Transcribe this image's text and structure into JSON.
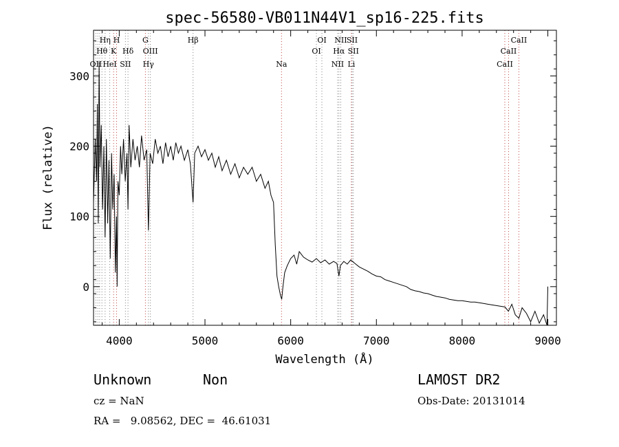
{
  "chart_data": {
    "type": "line",
    "title": "spec-56580-VB011N44V1_sp16-225.fits",
    "xlabel": "Wavelength (Å)",
    "ylabel": "Flux (relative)",
    "xlim": [
      3700,
      9100
    ],
    "ylim": [
      -55,
      365
    ],
    "xticks": [
      4000,
      5000,
      6000,
      7000,
      8000,
      9000
    ],
    "yticks": [
      0,
      100,
      200,
      300
    ],
    "grid": false,
    "series": [
      {
        "color": "#000000",
        "points": [
          [
            3700,
            120
          ],
          [
            3720,
            210
          ],
          [
            3735,
            150
          ],
          [
            3745,
            260
          ],
          [
            3755,
            90
          ],
          [
            3765,
            320
          ],
          [
            3775,
            170
          ],
          [
            3790,
            230
          ],
          [
            3805,
            110
          ],
          [
            3820,
            200
          ],
          [
            3835,
            70
          ],
          [
            3850,
            210
          ],
          [
            3865,
            90
          ],
          [
            3880,
            180
          ],
          [
            3895,
            40
          ],
          [
            3910,
            190
          ],
          [
            3925,
            110
          ],
          [
            3940,
            160
          ],
          [
            3955,
            20
          ],
          [
            3968,
            100
          ],
          [
            3975,
            0
          ],
          [
            3985,
            150
          ],
          [
            4000,
            130
          ],
          [
            4015,
            200
          ],
          [
            4030,
            160
          ],
          [
            4050,
            210
          ],
          [
            4070,
            150
          ],
          [
            4090,
            190
          ],
          [
            4102,
            110
          ],
          [
            4115,
            230
          ],
          [
            4135,
            170
          ],
          [
            4160,
            210
          ],
          [
            4185,
            180
          ],
          [
            4210,
            200
          ],
          [
            4235,
            170
          ],
          [
            4260,
            215
          ],
          [
            4290,
            180
          ],
          [
            4320,
            195
          ],
          [
            4340,
            80
          ],
          [
            4360,
            190
          ],
          [
            4390,
            175
          ],
          [
            4420,
            210
          ],
          [
            4450,
            190
          ],
          [
            4480,
            200
          ],
          [
            4510,
            175
          ],
          [
            4540,
            205
          ],
          [
            4570,
            185
          ],
          [
            4600,
            200
          ],
          [
            4630,
            180
          ],
          [
            4660,
            205
          ],
          [
            4690,
            190
          ],
          [
            4720,
            200
          ],
          [
            4760,
            180
          ],
          [
            4800,
            195
          ],
          [
            4830,
            175
          ],
          [
            4861,
            120
          ],
          [
            4880,
            190
          ],
          [
            4920,
            200
          ],
          [
            4960,
            185
          ],
          [
            5000,
            195
          ],
          [
            5040,
            180
          ],
          [
            5080,
            190
          ],
          [
            5120,
            170
          ],
          [
            5160,
            185
          ],
          [
            5200,
            165
          ],
          [
            5250,
            180
          ],
          [
            5300,
            160
          ],
          [
            5350,
            175
          ],
          [
            5400,
            155
          ],
          [
            5450,
            170
          ],
          [
            5500,
            160
          ],
          [
            5550,
            170
          ],
          [
            5600,
            150
          ],
          [
            5650,
            160
          ],
          [
            5700,
            140
          ],
          [
            5740,
            150
          ],
          [
            5770,
            130
          ],
          [
            5800,
            120
          ],
          [
            5820,
            60
          ],
          [
            5840,
            15
          ],
          [
            5860,
            0
          ],
          [
            5880,
            -12
          ],
          [
            5895,
            -18
          ],
          [
            5910,
            0
          ],
          [
            5930,
            20
          ],
          [
            5960,
            30
          ],
          [
            6000,
            40
          ],
          [
            6040,
            45
          ],
          [
            6070,
            32
          ],
          [
            6100,
            50
          ],
          [
            6150,
            42
          ],
          [
            6200,
            38
          ],
          [
            6250,
            35
          ],
          [
            6300,
            40
          ],
          [
            6350,
            34
          ],
          [
            6400,
            38
          ],
          [
            6450,
            32
          ],
          [
            6500,
            36
          ],
          [
            6540,
            33
          ],
          [
            6563,
            15
          ],
          [
            6580,
            30
          ],
          [
            6620,
            36
          ],
          [
            6660,
            32
          ],
          [
            6700,
            38
          ],
          [
            6750,
            33
          ],
          [
            6800,
            28
          ],
          [
            6850,
            25
          ],
          [
            6900,
            22
          ],
          [
            6950,
            18
          ],
          [
            7000,
            15
          ],
          [
            7050,
            14
          ],
          [
            7100,
            10
          ],
          [
            7150,
            8
          ],
          [
            7200,
            6
          ],
          [
            7250,
            4
          ],
          [
            7300,
            2
          ],
          [
            7350,
            0
          ],
          [
            7400,
            -4
          ],
          [
            7450,
            -6
          ],
          [
            7500,
            -7
          ],
          [
            7550,
            -9
          ],
          [
            7600,
            -10
          ],
          [
            7650,
            -12
          ],
          [
            7700,
            -14
          ],
          [
            7750,
            -15
          ],
          [
            7800,
            -16
          ],
          [
            7850,
            -18
          ],
          [
            7900,
            -19
          ],
          [
            7950,
            -20
          ],
          [
            8000,
            -20
          ],
          [
            8050,
            -21
          ],
          [
            8100,
            -22
          ],
          [
            8150,
            -22
          ],
          [
            8200,
            -23
          ],
          [
            8250,
            -24
          ],
          [
            8300,
            -25
          ],
          [
            8350,
            -26
          ],
          [
            8400,
            -27
          ],
          [
            8450,
            -28
          ],
          [
            8500,
            -29
          ],
          [
            8540,
            -35
          ],
          [
            8580,
            -25
          ],
          [
            8620,
            -40
          ],
          [
            8662,
            -45
          ],
          [
            8700,
            -30
          ],
          [
            8750,
            -38
          ],
          [
            8800,
            -50
          ],
          [
            8850,
            -35
          ],
          [
            8900,
            -52
          ],
          [
            8950,
            -40
          ],
          [
            8990,
            -55
          ],
          [
            9000,
            0
          ]
        ]
      }
    ],
    "line_markers": [
      {
        "x": 3727,
        "color": "#808080",
        "row": 3,
        "label": "OII"
      },
      {
        "x": 3750,
        "color": "#808080",
        "row": 1,
        "label": ""
      },
      {
        "x": 3771,
        "color": "#808080",
        "row": 2,
        "label": ""
      },
      {
        "x": 3798,
        "color": "#808080",
        "row": 2,
        "label": "Hθ"
      },
      {
        "x": 3835,
        "color": "#808080",
        "row": 1,
        "label": "Hη"
      },
      {
        "x": 3889,
        "color": "#808080",
        "row": 3,
        "label": "HeI"
      },
      {
        "x": 3934,
        "color": "#c04040",
        "row": 2,
        "label": "K"
      },
      {
        "x": 3969,
        "color": "#c04040",
        "row": 1,
        "label": "H"
      },
      {
        "x": 4072,
        "color": "#808080",
        "row": 3,
        "label": "SII"
      },
      {
        "x": 4102,
        "color": "#808080",
        "row": 2,
        "label": "Hδ"
      },
      {
        "x": 4305,
        "color": "#c04040",
        "row": 1,
        "label": "G"
      },
      {
        "x": 4340,
        "color": "#808080",
        "row": 3,
        "label": "Hγ"
      },
      {
        "x": 4363,
        "color": "#808080",
        "row": 2,
        "label": "OIII"
      },
      {
        "x": 4861,
        "color": "#808080",
        "row": 1,
        "label": "Hβ"
      },
      {
        "x": 5893,
        "color": "#c04040",
        "row": 3,
        "label": "Na"
      },
      {
        "x": 6300,
        "color": "#808080",
        "row": 2,
        "label": "OI"
      },
      {
        "x": 6364,
        "color": "#808080",
        "row": 1,
        "label": "OI"
      },
      {
        "x": 6548,
        "color": "#808080",
        "row": 3,
        "label": "NII"
      },
      {
        "x": 6563,
        "color": "#808080",
        "row": 2,
        "label": "Hα"
      },
      {
        "x": 6584,
        "color": "#808080",
        "row": 1,
        "label": "NII"
      },
      {
        "x": 6708,
        "color": "#c04040",
        "row": 3,
        "label": "Li"
      },
      {
        "x": 6717,
        "color": "#808080",
        "row": 1,
        "label": "SII"
      },
      {
        "x": 6731,
        "color": "#808080",
        "row": 2,
        "label": "SII"
      },
      {
        "x": 8498,
        "color": "#c04040",
        "row": 3,
        "label": "CaII"
      },
      {
        "x": 8542,
        "color": "#c04040",
        "row": 2,
        "label": "CaII"
      },
      {
        "x": 8662,
        "color": "#c04040",
        "row": 1,
        "label": "CaII"
      }
    ]
  },
  "info": {
    "class": "Unknown",
    "subclass": "Non",
    "survey": "LAMOST DR2",
    "cz": "cz = NaN",
    "obs_date": "Obs-Date: 20131014",
    "coords": "RA =   9.08562, DEC =  46.61031"
  }
}
